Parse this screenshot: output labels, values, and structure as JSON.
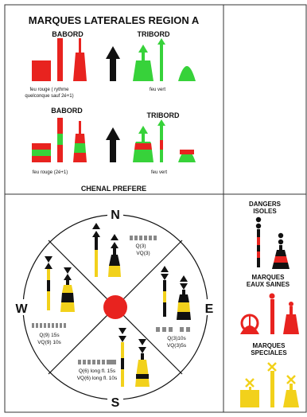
{
  "title": "MARQUES LATERALES REGION A",
  "lateral": {
    "row1": {
      "port_label": "BABORD",
      "starboard_label": "TRIBORD",
      "port_caption_line1": "feu rouge ( rythme",
      "port_caption_line2": "quelconque sauf 2é+1)",
      "starboard_caption": "feu vert"
    },
    "row2": {
      "port_label": "BABORD",
      "starboard_label": "TRIBORD",
      "port_caption": "feu rouge  (2é+1)",
      "starboard_caption": "feu vert"
    },
    "preferred_channel": "CHENAL PREFERE"
  },
  "cardinal": {
    "north": "N",
    "south": "S",
    "east": "E",
    "west": "W",
    "north_light_1": "Q(3)",
    "north_light_2": "VQ(3)",
    "west_light_1": "Q(9) 15s",
    "west_light_2": "VQ(9) 10s",
    "east_light_1": "Q(3)10s",
    "east_light_2": "VQ(3)5s",
    "south_light_1": "Q(6) long fl. 15s",
    "south_light_2": "VQ(6) long fl. 10s"
  },
  "special": {
    "isolated_danger_1": "DANGERS",
    "isolated_danger_2": "ISOLES",
    "safe_water_1": "MARQUES",
    "safe_water_2": "EAUX SAINES",
    "special_marks_1": "MARQUES",
    "special_marks_2": "SPECIALES"
  },
  "colors": {
    "red": "#e8231f",
    "green": "#37d23a",
    "black": "#111111",
    "yellow": "#f2d11b",
    "grid": "#333333"
  }
}
